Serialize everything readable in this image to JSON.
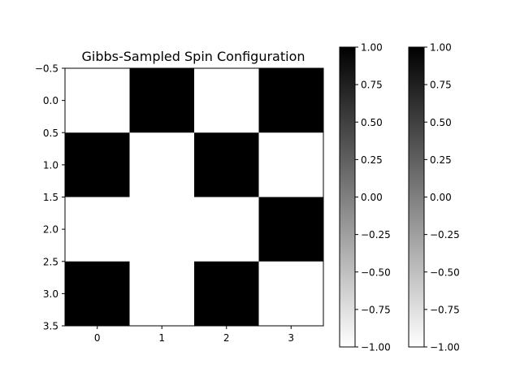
{
  "chart_data": {
    "type": "heatmap",
    "title": "Gibbs-Sampled Spin Configuration",
    "cmap": "Greys",
    "vmin": -1,
    "vmax": 1,
    "values": [
      [
        -1,
        1,
        -1,
        1
      ],
      [
        1,
        -1,
        1,
        -1
      ],
      [
        -1,
        -1,
        -1,
        1
      ],
      [
        1,
        -1,
        1,
        -1
      ]
    ],
    "xticks": [
      "0",
      "1",
      "2",
      "3"
    ],
    "yticks": [
      "−0.5",
      "0.0",
      "0.5",
      "1.0",
      "1.5",
      "2.0",
      "2.5",
      "3.0",
      "3.5"
    ],
    "xlim": [
      -0.5,
      3.5
    ],
    "ylim": [
      3.5,
      -0.5
    ],
    "colorbars": [
      {
        "ticks": [
          "1.00",
          "0.75",
          "0.50",
          "0.25",
          "0.00",
          "−0.25",
          "−0.50",
          "−0.75",
          "−1.00"
        ]
      },
      {
        "ticks": [
          "1.00",
          "0.75",
          "0.50",
          "0.25",
          "0.00",
          "−0.25",
          "−0.50",
          "−0.75",
          "−1.00"
        ]
      }
    ]
  }
}
